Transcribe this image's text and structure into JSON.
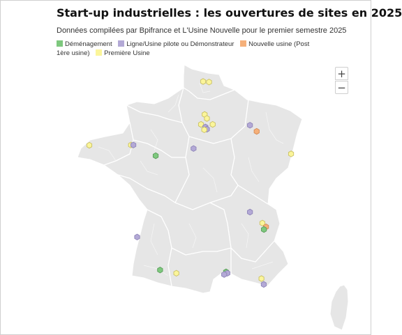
{
  "title": "Start-up industrielles : les ouvertures de sites en 2025",
  "subtitle": "Données compilées par Bpifrance et L'Usine Nouvelle pour le premier semestre 2025",
  "legend": {
    "items": [
      {
        "key": "demenagement",
        "label": "Déménagement",
        "color": "#7ec87e",
        "stroke": "#5a9e5a"
      },
      {
        "key": "ligne",
        "label": "Ligne/Usine pilote ou Démonstrateur",
        "color": "#b3a9d6",
        "stroke": "#8e84b8"
      },
      {
        "key": "nouvelle",
        "label": "Nouvelle usine (Post 1ère usine)",
        "color": "#f5b07a",
        "stroke": "#d58a55"
      },
      {
        "key": "premiere",
        "label": "Première Usine",
        "color": "#fbf59a",
        "stroke": "#c9c065"
      }
    ]
  },
  "zoom": {
    "in_label": "+",
    "out_label": "−"
  },
  "map": {
    "land_color": "#e6e6e6",
    "border_color": "#ffffff",
    "markers": [
      {
        "type": "premiere",
        "lat": 50.65,
        "lon": 2.75
      },
      {
        "type": "premiere",
        "lat": 50.63,
        "lon": 3.06
      },
      {
        "type": "premiere",
        "lat": 49.42,
        "lon": 2.83
      },
      {
        "type": "premiere",
        "lat": 49.27,
        "lon": 2.95
      },
      {
        "type": "premiere",
        "lat": 49.05,
        "lon": 2.64
      },
      {
        "type": "premiere",
        "lat": 49.05,
        "lon": 3.25
      },
      {
        "type": "ligne",
        "lat": 48.95,
        "lon": 2.87
      },
      {
        "type": "ligne",
        "lat": 48.87,
        "lon": 2.95
      },
      {
        "type": "premiere",
        "lat": 48.85,
        "lon": 2.81
      },
      {
        "type": "ligne",
        "lat": 49.02,
        "lon": 5.2
      },
      {
        "type": "nouvelle",
        "lat": 48.79,
        "lon": 5.55
      },
      {
        "type": "premiere",
        "lat": 48.27,
        "lon": -3.2
      },
      {
        "type": "premiere",
        "lat": 48.28,
        "lon": -1.02
      },
      {
        "type": "ligne",
        "lat": 48.28,
        "lon": -0.9
      },
      {
        "type": "ligne",
        "lat": 48.15,
        "lon": 2.25
      },
      {
        "type": "demenagement",
        "lat": 47.88,
        "lon": 0.27
      },
      {
        "type": "premiere",
        "lat": 47.95,
        "lon": 7.35
      },
      {
        "type": "ligne",
        "lat": 45.78,
        "lon": 5.2
      },
      {
        "type": "premiere",
        "lat": 45.37,
        "lon": 5.85
      },
      {
        "type": "nouvelle",
        "lat": 45.23,
        "lon": 6.04
      },
      {
        "type": "demenagement",
        "lat": 45.13,
        "lon": 5.93
      },
      {
        "type": "ligne",
        "lat": 44.85,
        "lon": -0.7
      },
      {
        "type": "demenagement",
        "lat": 43.62,
        "lon": 0.5
      },
      {
        "type": "premiere",
        "lat": 43.5,
        "lon": 1.35
      },
      {
        "type": "demenagement",
        "lat": 43.55,
        "lon": 3.95
      },
      {
        "type": "ligne",
        "lat": 43.5,
        "lon": 4.02
      },
      {
        "type": "ligne",
        "lat": 43.45,
        "lon": 3.85
      },
      {
        "type": "premiere",
        "lat": 43.3,
        "lon": 5.8
      },
      {
        "type": "ligne",
        "lat": 43.08,
        "lon": 5.92
      }
    ]
  }
}
